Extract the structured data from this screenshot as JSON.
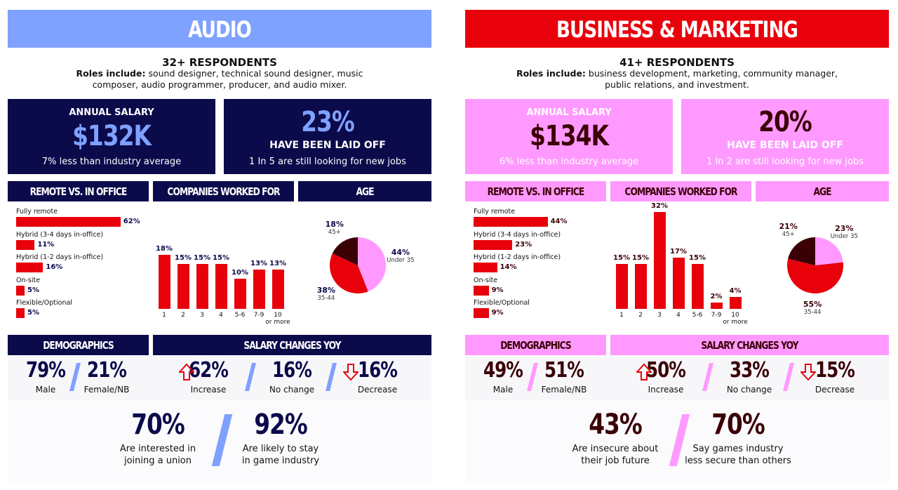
{
  "panels": [
    {
      "title": "AUDIO",
      "respondents": "32+ RESPONDENTS",
      "roles_label": "Roles include:",
      "roles": "sound designer, technical sound designer, music composer, audio programmer, producer, and audio mixer.",
      "salary": {
        "label": "ANNUAL SALARY",
        "value": "$132K",
        "note": "7% less than industry average"
      },
      "laid_off": {
        "value": "23%",
        "label": "HAVE BEEN LAID OFF",
        "note": "1 In 5 are still looking for new jobs"
      },
      "remote": {
        "header": "REMOTE VS. IN OFFICE",
        "items": [
          {
            "label": "Fully remote",
            "value": 62,
            "value_label": "62%"
          },
          {
            "label": "Hybrid (3-4 days in-office)",
            "value": 11,
            "value_label": "11%"
          },
          {
            "label": "Hybrid (1-2 days in-office)",
            "value": 16,
            "value_label": "16%"
          },
          {
            "label": "On-site",
            "value": 5,
            "value_label": "5%"
          },
          {
            "label": "Flexible/Optional",
            "value": 5,
            "value_label": "5%"
          }
        ]
      },
      "companies": {
        "header": "COMPANIES WORKED FOR",
        "categories": [
          "1",
          "2",
          "3",
          "4",
          "5-6",
          "7-9",
          "10\nor more"
        ],
        "values": [
          18,
          15,
          15,
          15,
          10,
          13,
          13
        ],
        "value_labels": [
          "18%",
          "15%",
          "15%",
          "15%",
          "10%",
          "13%",
          "13%"
        ]
      },
      "age": {
        "header": "AGE",
        "slices": [
          {
            "label": "Under 35",
            "value": 44,
            "value_label": "44%",
            "color": "#ff99ff"
          },
          {
            "label": "35-44",
            "value": 38,
            "value_label": "38%",
            "color": "#e8000b"
          },
          {
            "label": "45+",
            "value": 18,
            "value_label": "18%",
            "color": "#3b0006"
          }
        ]
      },
      "demographics": {
        "header": "DEMOGRAPHICS",
        "items": [
          {
            "value": "79%",
            "label": "Male"
          },
          {
            "value": "21%",
            "label": "Female/NB"
          }
        ]
      },
      "salary_changes": {
        "header": "SALARY CHANGES YOY",
        "items": [
          {
            "value": "62%",
            "label": "Increase"
          },
          {
            "value": "16%",
            "label": "No change"
          },
          {
            "value": "16%",
            "label": "Decrease"
          }
        ]
      },
      "highlights": [
        {
          "value": "70%",
          "label": "Are interested in\njoining a union"
        },
        {
          "value": "92%",
          "label": "Are likely to stay\nin game industry"
        }
      ]
    },
    {
      "title": "BUSINESS & MARKETING",
      "respondents": "41+ RESPONDENTS",
      "roles_label": "Roles include:",
      "roles": "business development, marketing, community manager, public relations, and investment.",
      "salary": {
        "label": "ANNUAL SALARY",
        "value": "$134K",
        "note": "6% less than industry average"
      },
      "laid_off": {
        "value": "20%",
        "label": "HAVE BEEN LAID OFF",
        "note": "1 In 2 are still looking for new jobs"
      },
      "remote": {
        "header": "REMOTE VS. IN OFFICE",
        "items": [
          {
            "label": "Fully remote",
            "value": 44,
            "value_label": "44%"
          },
          {
            "label": "Hybrid (3-4 days in-office)",
            "value": 23,
            "value_label": "23%"
          },
          {
            "label": "Hybrid (1-2 days in-office)",
            "value": 14,
            "value_label": "14%"
          },
          {
            "label": "On-site",
            "value": 9,
            "value_label": "9%"
          },
          {
            "label": "Flexible/Optional",
            "value": 9,
            "value_label": "9%"
          }
        ]
      },
      "companies": {
        "header": "COMPANIES WORKED FOR",
        "categories": [
          "1",
          "2",
          "3",
          "4",
          "5-6",
          "7-9",
          "10\nor more"
        ],
        "values": [
          15,
          15,
          32,
          17,
          15,
          2,
          4
        ],
        "value_labels": [
          "15%",
          "15%",
          "32%",
          "17%",
          "15%",
          "2%",
          "4%"
        ]
      },
      "age": {
        "header": "AGE",
        "slices": [
          {
            "label": "Under 35",
            "value": 23,
            "value_label": "23%",
            "color": "#ff99ff"
          },
          {
            "label": "35-44",
            "value": 55,
            "value_label": "55%",
            "color": "#e8000b"
          },
          {
            "label": "45+",
            "value": 21,
            "value_label": "21%",
            "color": "#3b0006"
          }
        ]
      },
      "demographics": {
        "header": "DEMOGRAPHICS",
        "items": [
          {
            "value": "49%",
            "label": "Male"
          },
          {
            "value": "51%",
            "label": "Female/NB"
          }
        ]
      },
      "salary_changes": {
        "header": "SALARY CHANGES YOY",
        "items": [
          {
            "value": "50%",
            "label": "Increase"
          },
          {
            "value": "33%",
            "label": "No change"
          },
          {
            "value": "15%",
            "label": "Decrease"
          }
        ]
      },
      "highlights": [
        {
          "value": "43%",
          "label": "Are insecure about\ntheir job future"
        },
        {
          "value": "70%",
          "label": "Say games industry\nless secure than others"
        }
      ]
    }
  ]
}
